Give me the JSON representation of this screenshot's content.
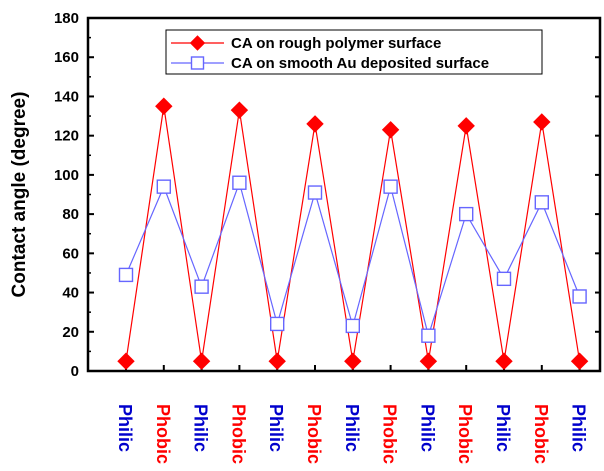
{
  "chart_data": {
    "type": "line",
    "ylabel": "Contact angle (degree)",
    "ylim": [
      0,
      180
    ],
    "yticks": [
      0,
      20,
      40,
      60,
      80,
      100,
      120,
      140,
      160,
      180
    ],
    "categories": [
      "Philic",
      "Phobic",
      "Philic",
      "Phobic",
      "Philic",
      "Phobic",
      "Philic",
      "Phobic",
      "Philic",
      "Phobic",
      "Philic",
      "Phobic",
      "Philic"
    ],
    "category_colors": [
      "#0000cc",
      "#ff0000",
      "#0000cc",
      "#ff0000",
      "#0000cc",
      "#ff0000",
      "#0000cc",
      "#ff0000",
      "#0000cc",
      "#ff0000",
      "#0000cc",
      "#ff0000",
      "#0000cc"
    ],
    "legend_position": "top-right",
    "grid": false,
    "series": [
      {
        "name": "CA on rough polymer surface",
        "color": "#ff0000",
        "marker": "diamond-filled",
        "values": [
          5,
          135,
          5,
          133,
          5,
          126,
          5,
          123,
          5,
          125,
          5,
          127,
          5
        ]
      },
      {
        "name": "CA on smooth Au deposited surface",
        "color": "#6666ff",
        "marker": "square-open",
        "values": [
          49,
          94,
          43,
          96,
          24,
          91,
          23,
          94,
          18,
          80,
          47,
          86,
          38
        ]
      }
    ]
  }
}
